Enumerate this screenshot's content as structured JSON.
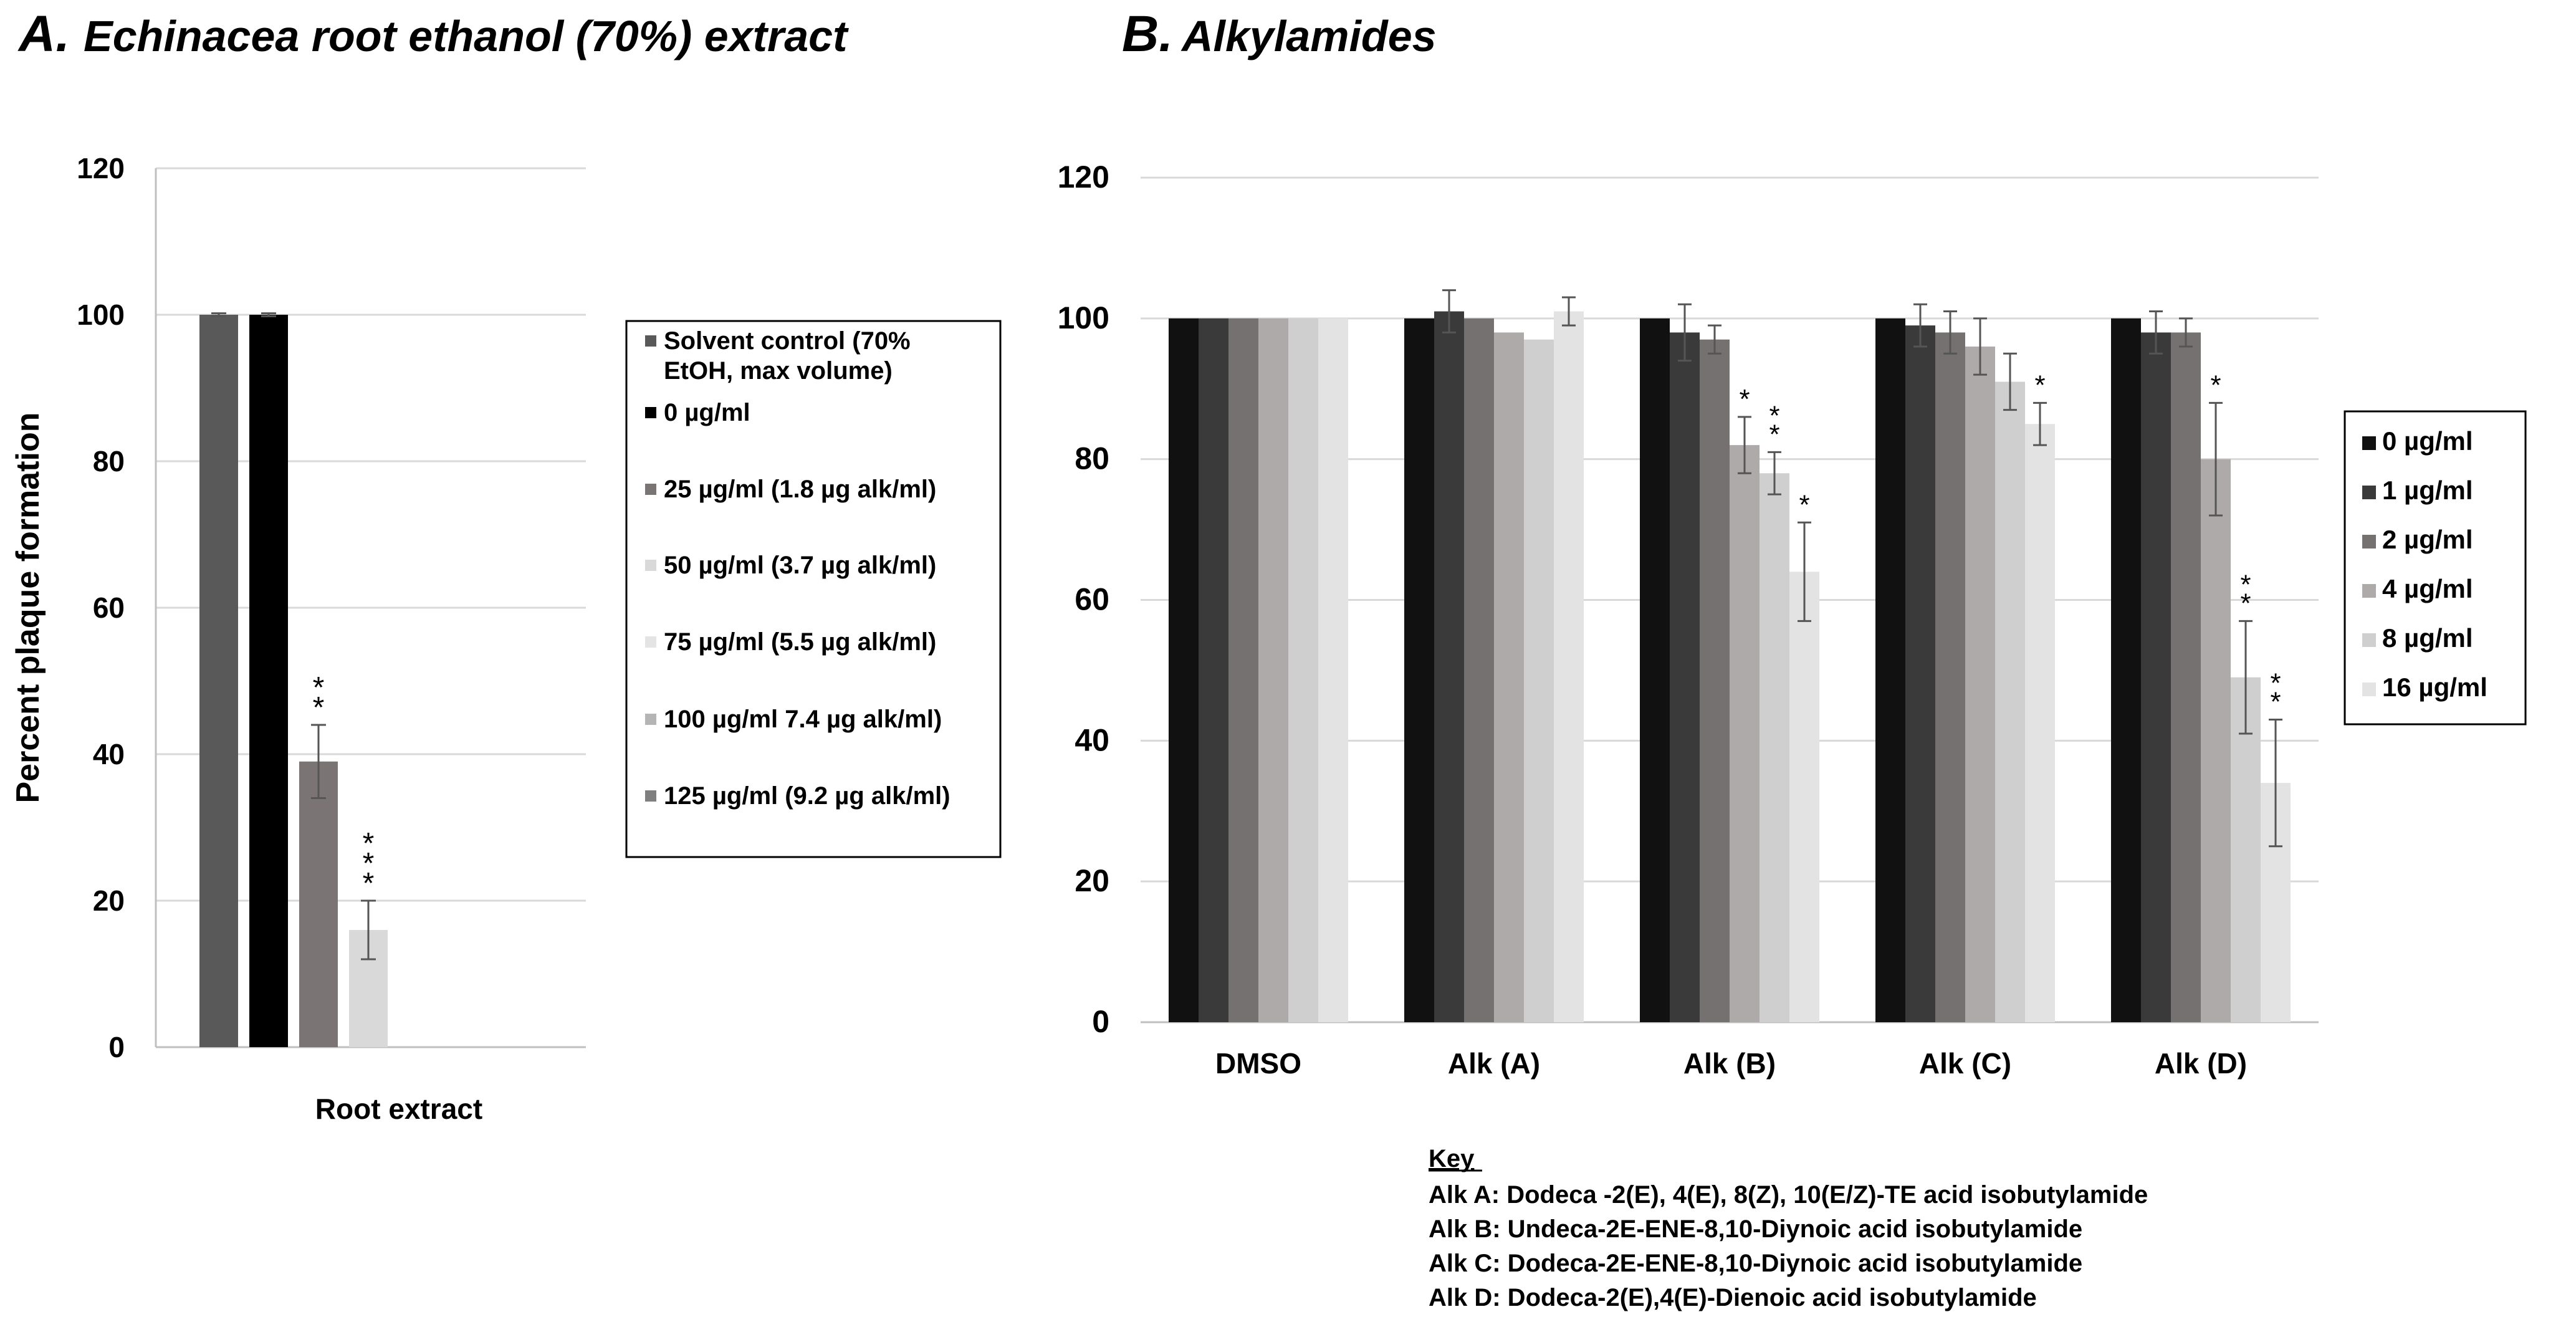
{
  "chart_data": [
    {
      "panel": "A.",
      "title": "Echinacea root ethanol (70%) extract",
      "type": "bar",
      "ylabel": "Percent plaque formation",
      "xlabel": "",
      "categories": [
        "Root extract"
      ],
      "ylim": [
        0,
        120
      ],
      "yticks": [
        0,
        20,
        40,
        60,
        80,
        100,
        120
      ],
      "grid": true,
      "series": [
        {
          "name": "Solvent control (70% EtOH, max volume)",
          "label_lines": [
            "Solvent control (70%",
            "EtOH, max volume)"
          ],
          "color": "#595959",
          "values": [
            100
          ],
          "errors": [
            0.2
          ],
          "sig": [
            ""
          ]
        },
        {
          "name": "0 µg/ml",
          "label_lines": [
            "0 µg/ml"
          ],
          "color": "#000000",
          "values": [
            100
          ],
          "errors": [
            0.2
          ],
          "sig": [
            ""
          ]
        },
        {
          "name": "25 µg/ml (1.8 µg alk/ml)",
          "label_lines": [
            "25 µg/ml (1.8 µg alk/ml)"
          ],
          "color": "#7a7574",
          "values": [
            39
          ],
          "errors": [
            5
          ],
          "sig": [
            "**"
          ]
        },
        {
          "name": "50 µg/ml (3.7 µg alk/ml)",
          "label_lines": [
            "50 µg/ml (3.7 µg alk/ml)"
          ],
          "color": "#d9d9d9",
          "values": [
            16
          ],
          "errors": [
            4
          ],
          "sig": [
            "***"
          ]
        },
        {
          "name": "75 µg/ml (5.5 µg alk/ml)",
          "label_lines": [
            "75 µg/ml (5.5 µg alk/ml)"
          ],
          "color": "#e4e4e4",
          "values": [
            null
          ],
          "errors": [
            null
          ],
          "sig": [
            ""
          ]
        },
        {
          "name": "100 µg/ml 7.4 µg alk/ml)",
          "label_lines": [
            "100 µg/ml 7.4 µg alk/ml)"
          ],
          "color": "#b5b5b5",
          "values": [
            null
          ],
          "errors": [
            null
          ],
          "sig": [
            ""
          ]
        },
        {
          "name": "125 µg/ml (9.2 µg alk/ml)",
          "label_lines": [
            "125 µg/ml (9.2 µg alk/ml)"
          ],
          "color": "#7f7f7f",
          "values": [
            null
          ],
          "errors": [
            null
          ],
          "sig": [
            ""
          ]
        }
      ],
      "legend_position": "right"
    },
    {
      "panel": "B.",
      "title": "Alkylamides",
      "type": "bar",
      "ylabel": "",
      "xlabel": "",
      "categories": [
        "DMSO",
        "Alk (A)",
        "Alk (B)",
        "Alk (C)",
        "Alk (D)"
      ],
      "ylim": [
        0,
        120
      ],
      "yticks": [
        0,
        20,
        40,
        60,
        80,
        100,
        120
      ],
      "grid": true,
      "series": [
        {
          "name": "0 µg/ml",
          "color": "#111111",
          "values": [
            100,
            100,
            100,
            100,
            100
          ],
          "errors": [
            0,
            0,
            0,
            0,
            0
          ],
          "sig": [
            "",
            "",
            "",
            "",
            ""
          ]
        },
        {
          "name": "1 µg/ml",
          "color": "#3a3a3a",
          "values": [
            100,
            101,
            98,
            99,
            98
          ],
          "errors": [
            0,
            3,
            4,
            3,
            3
          ],
          "sig": [
            "",
            "",
            "",
            "",
            ""
          ]
        },
        {
          "name": "2 µg/ml",
          "color": "#767171",
          "values": [
            100,
            100,
            97,
            98,
            98
          ],
          "errors": [
            0,
            0,
            2,
            3,
            2
          ],
          "sig": [
            "",
            "",
            "",
            "",
            ""
          ]
        },
        {
          "name": "4 µg/ml",
          "color": "#aeaaaa",
          "values": [
            100,
            98,
            82,
            96,
            80
          ],
          "errors": [
            0,
            0,
            4,
            4,
            8
          ],
          "sig": [
            "",
            "",
            "*",
            "",
            "*"
          ]
        },
        {
          "name": "8 µg/ml",
          "color": "#cfcfcf",
          "values": [
            100,
            97,
            78,
            91,
            49
          ],
          "errors": [
            0,
            0,
            3,
            4,
            8
          ],
          "sig": [
            "",
            "",
            "**",
            "",
            "**"
          ]
        },
        {
          "name": "16 µg/ml",
          "color": "#e3e3e3",
          "values": [
            100,
            101,
            64,
            85,
            34
          ],
          "errors": [
            0,
            2,
            7,
            3,
            9
          ],
          "sig": [
            "",
            "",
            "*",
            "*",
            "**"
          ]
        }
      ],
      "legend_position": "right"
    }
  ],
  "key": {
    "heading": "Key",
    "lines": [
      "Alk A: Dodeca -2(E), 4(E), 8(Z), 10(E/Z)-TE acid isobutylamide",
      "Alk B: Undeca-2E-ENE-8,10-Diynoic acid isobutylamide",
      "Alk C: Dodeca-2E-ENE-8,10-Diynoic acid isobutylamide",
      "Alk D: Dodeca-2(E),4(E)-Dienoic acid isobutylamide"
    ]
  }
}
